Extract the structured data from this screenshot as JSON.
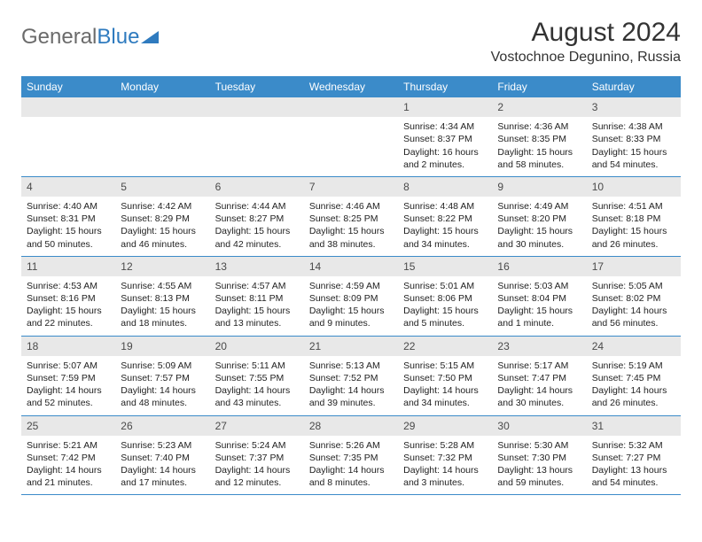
{
  "logo": {
    "text1": "General",
    "text2": "Blue"
  },
  "title": "August 2024",
  "location": "Vostochnoe Degunino, Russia",
  "colors": {
    "header_bg": "#3b8bc9",
    "header_text": "#ffffff",
    "daynum_bg": "#e8e8e8",
    "border": "#3b8bc9",
    "page_bg": "#ffffff",
    "logo_gray": "#6b6b6b",
    "logo_blue": "#2f7bbf"
  },
  "weekdays": [
    "Sunday",
    "Monday",
    "Tuesday",
    "Wednesday",
    "Thursday",
    "Friday",
    "Saturday"
  ],
  "weeks": [
    [
      null,
      null,
      null,
      null,
      {
        "n": "1",
        "sr": "Sunrise: 4:34 AM",
        "ss": "Sunset: 8:37 PM",
        "dl": "Daylight: 16 hours and 2 minutes."
      },
      {
        "n": "2",
        "sr": "Sunrise: 4:36 AM",
        "ss": "Sunset: 8:35 PM",
        "dl": "Daylight: 15 hours and 58 minutes."
      },
      {
        "n": "3",
        "sr": "Sunrise: 4:38 AM",
        "ss": "Sunset: 8:33 PM",
        "dl": "Daylight: 15 hours and 54 minutes."
      }
    ],
    [
      {
        "n": "4",
        "sr": "Sunrise: 4:40 AM",
        "ss": "Sunset: 8:31 PM",
        "dl": "Daylight: 15 hours and 50 minutes."
      },
      {
        "n": "5",
        "sr": "Sunrise: 4:42 AM",
        "ss": "Sunset: 8:29 PM",
        "dl": "Daylight: 15 hours and 46 minutes."
      },
      {
        "n": "6",
        "sr": "Sunrise: 4:44 AM",
        "ss": "Sunset: 8:27 PM",
        "dl": "Daylight: 15 hours and 42 minutes."
      },
      {
        "n": "7",
        "sr": "Sunrise: 4:46 AM",
        "ss": "Sunset: 8:25 PM",
        "dl": "Daylight: 15 hours and 38 minutes."
      },
      {
        "n": "8",
        "sr": "Sunrise: 4:48 AM",
        "ss": "Sunset: 8:22 PM",
        "dl": "Daylight: 15 hours and 34 minutes."
      },
      {
        "n": "9",
        "sr": "Sunrise: 4:49 AM",
        "ss": "Sunset: 8:20 PM",
        "dl": "Daylight: 15 hours and 30 minutes."
      },
      {
        "n": "10",
        "sr": "Sunrise: 4:51 AM",
        "ss": "Sunset: 8:18 PM",
        "dl": "Daylight: 15 hours and 26 minutes."
      }
    ],
    [
      {
        "n": "11",
        "sr": "Sunrise: 4:53 AM",
        "ss": "Sunset: 8:16 PM",
        "dl": "Daylight: 15 hours and 22 minutes."
      },
      {
        "n": "12",
        "sr": "Sunrise: 4:55 AM",
        "ss": "Sunset: 8:13 PM",
        "dl": "Daylight: 15 hours and 18 minutes."
      },
      {
        "n": "13",
        "sr": "Sunrise: 4:57 AM",
        "ss": "Sunset: 8:11 PM",
        "dl": "Daylight: 15 hours and 13 minutes."
      },
      {
        "n": "14",
        "sr": "Sunrise: 4:59 AM",
        "ss": "Sunset: 8:09 PM",
        "dl": "Daylight: 15 hours and 9 minutes."
      },
      {
        "n": "15",
        "sr": "Sunrise: 5:01 AM",
        "ss": "Sunset: 8:06 PM",
        "dl": "Daylight: 15 hours and 5 minutes."
      },
      {
        "n": "16",
        "sr": "Sunrise: 5:03 AM",
        "ss": "Sunset: 8:04 PM",
        "dl": "Daylight: 15 hours and 1 minute."
      },
      {
        "n": "17",
        "sr": "Sunrise: 5:05 AM",
        "ss": "Sunset: 8:02 PM",
        "dl": "Daylight: 14 hours and 56 minutes."
      }
    ],
    [
      {
        "n": "18",
        "sr": "Sunrise: 5:07 AM",
        "ss": "Sunset: 7:59 PM",
        "dl": "Daylight: 14 hours and 52 minutes."
      },
      {
        "n": "19",
        "sr": "Sunrise: 5:09 AM",
        "ss": "Sunset: 7:57 PM",
        "dl": "Daylight: 14 hours and 48 minutes."
      },
      {
        "n": "20",
        "sr": "Sunrise: 5:11 AM",
        "ss": "Sunset: 7:55 PM",
        "dl": "Daylight: 14 hours and 43 minutes."
      },
      {
        "n": "21",
        "sr": "Sunrise: 5:13 AM",
        "ss": "Sunset: 7:52 PM",
        "dl": "Daylight: 14 hours and 39 minutes."
      },
      {
        "n": "22",
        "sr": "Sunrise: 5:15 AM",
        "ss": "Sunset: 7:50 PM",
        "dl": "Daylight: 14 hours and 34 minutes."
      },
      {
        "n": "23",
        "sr": "Sunrise: 5:17 AM",
        "ss": "Sunset: 7:47 PM",
        "dl": "Daylight: 14 hours and 30 minutes."
      },
      {
        "n": "24",
        "sr": "Sunrise: 5:19 AM",
        "ss": "Sunset: 7:45 PM",
        "dl": "Daylight: 14 hours and 26 minutes."
      }
    ],
    [
      {
        "n": "25",
        "sr": "Sunrise: 5:21 AM",
        "ss": "Sunset: 7:42 PM",
        "dl": "Daylight: 14 hours and 21 minutes."
      },
      {
        "n": "26",
        "sr": "Sunrise: 5:23 AM",
        "ss": "Sunset: 7:40 PM",
        "dl": "Daylight: 14 hours and 17 minutes."
      },
      {
        "n": "27",
        "sr": "Sunrise: 5:24 AM",
        "ss": "Sunset: 7:37 PM",
        "dl": "Daylight: 14 hours and 12 minutes."
      },
      {
        "n": "28",
        "sr": "Sunrise: 5:26 AM",
        "ss": "Sunset: 7:35 PM",
        "dl": "Daylight: 14 hours and 8 minutes."
      },
      {
        "n": "29",
        "sr": "Sunrise: 5:28 AM",
        "ss": "Sunset: 7:32 PM",
        "dl": "Daylight: 14 hours and 3 minutes."
      },
      {
        "n": "30",
        "sr": "Sunrise: 5:30 AM",
        "ss": "Sunset: 7:30 PM",
        "dl": "Daylight: 13 hours and 59 minutes."
      },
      {
        "n": "31",
        "sr": "Sunrise: 5:32 AM",
        "ss": "Sunset: 7:27 PM",
        "dl": "Daylight: 13 hours and 54 minutes."
      }
    ]
  ]
}
